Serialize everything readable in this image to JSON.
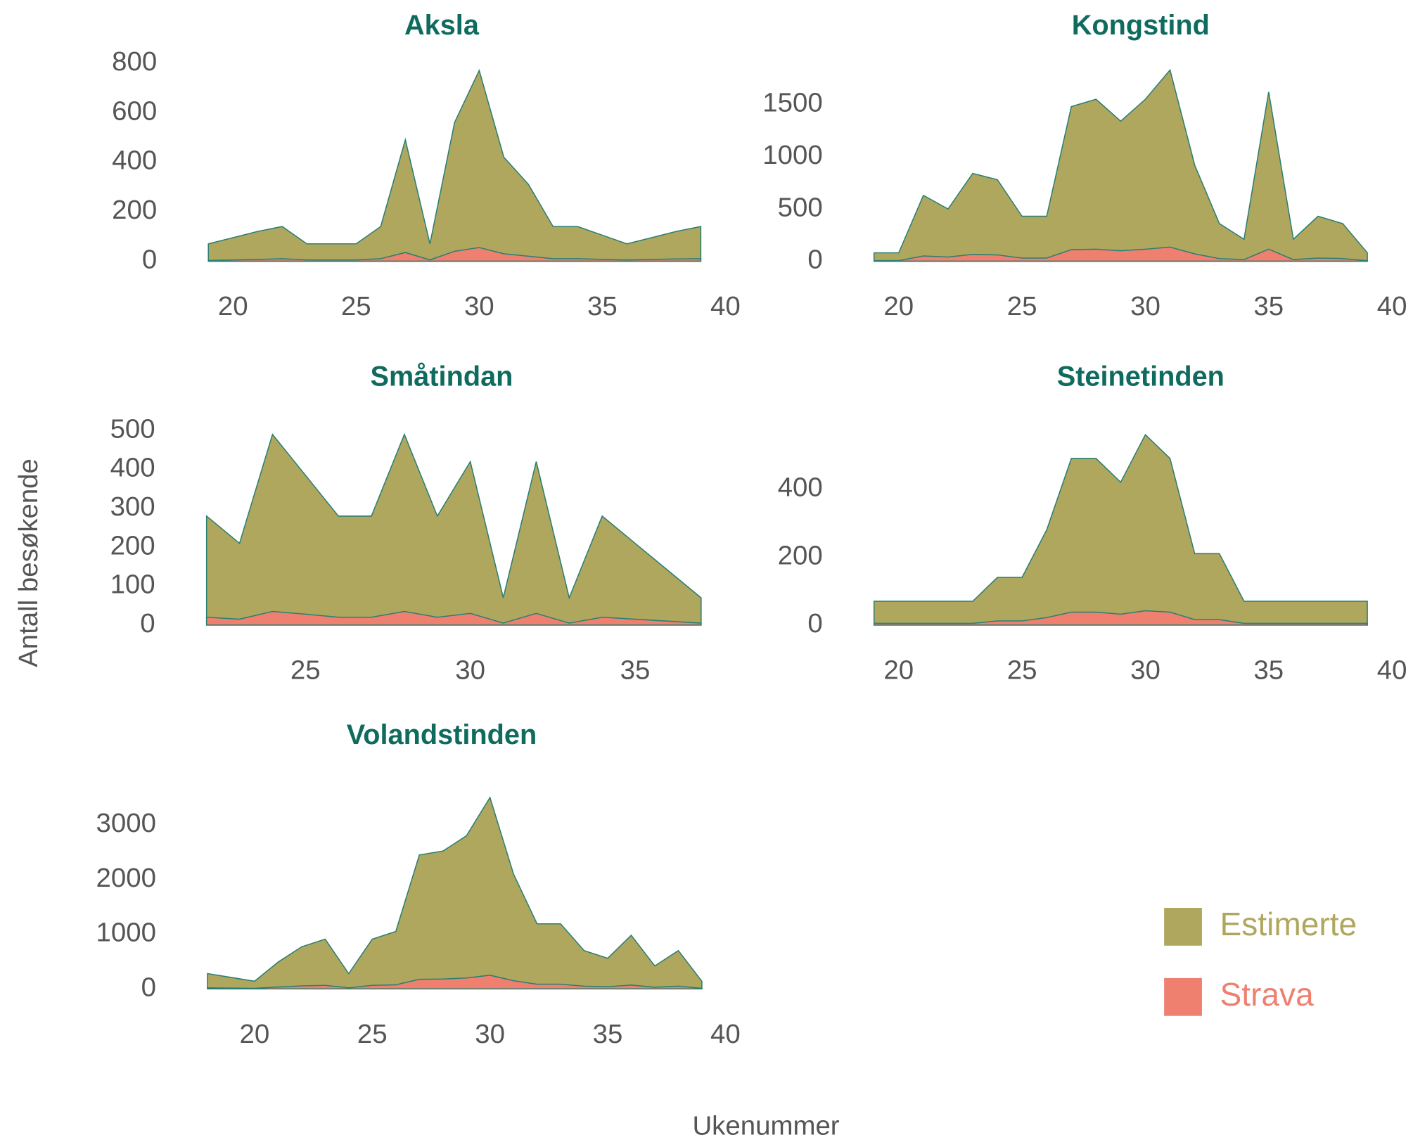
{
  "xlabel": "Ukenummer",
  "ylabel": "Antall besøkende",
  "chart_data": [
    {
      "type": "area",
      "title": "Aksla",
      "x": [
        19,
        20,
        21,
        22,
        23,
        24,
        25,
        26,
        27,
        28,
        29,
        30,
        31,
        32,
        33,
        34,
        35,
        36,
        37,
        38,
        39
      ],
      "series": [
        {
          "name": "Estimerte",
          "color": "#b0a75f",
          "values": [
            70,
            95,
            120,
            140,
            70,
            70,
            70,
            140,
            490,
            70,
            560,
            770,
            420,
            310,
            140,
            140,
            105,
            70,
            95,
            120,
            140
          ]
        },
        {
          "name": "Strava",
          "color": "#ef8070",
          "values": [
            3,
            5,
            7,
            10,
            5,
            5,
            5,
            10,
            35,
            5,
            40,
            55,
            30,
            20,
            10,
            10,
            7,
            5,
            7,
            9,
            10
          ]
        }
      ],
      "xlim": [
        19,
        40
      ],
      "ylim": [
        0,
        800
      ],
      "xticks": [
        20,
        25,
        30,
        35,
        40
      ],
      "yticks": [
        0,
        200,
        400,
        600,
        800
      ]
    },
    {
      "type": "area",
      "title": "Kongstind",
      "x": [
        19,
        20,
        21,
        22,
        23,
        24,
        25,
        26,
        27,
        28,
        29,
        30,
        31,
        32,
        33,
        34,
        35,
        36,
        37,
        38,
        39
      ],
      "series": [
        {
          "name": "Estimerte",
          "color": "#b0a75f",
          "values": [
            80,
            80,
            630,
            500,
            840,
            780,
            430,
            430,
            1480,
            1550,
            1340,
            1550,
            1830,
            920,
            360,
            210,
            1620,
            210,
            430,
            360,
            80
          ]
        },
        {
          "name": "Strava",
          "color": "#ef8070",
          "values": [
            5,
            5,
            50,
            40,
            65,
            60,
            30,
            30,
            110,
            115,
            100,
            115,
            135,
            70,
            25,
            15,
            115,
            15,
            30,
            25,
            5
          ]
        }
      ],
      "xlim": [
        19,
        40
      ],
      "ylim": [
        0,
        1850
      ],
      "xticks": [
        20,
        25,
        30,
        35,
        40
      ],
      "yticks": [
        0,
        500,
        1000,
        1500
      ]
    },
    {
      "type": "area",
      "title": "Småtindan",
      "x": [
        22,
        23,
        24,
        25,
        26,
        27,
        28,
        29,
        30,
        31,
        32,
        33,
        34,
        35,
        36,
        37
      ],
      "series": [
        {
          "name": "Estimerte",
          "color": "#b0a75f",
          "values": [
            280,
            210,
            490,
            385,
            280,
            280,
            490,
            280,
            420,
            70,
            420,
            70,
            280,
            210,
            140,
            70
          ]
        },
        {
          "name": "Strava",
          "color": "#ef8070",
          "values": [
            20,
            15,
            35,
            28,
            20,
            20,
            35,
            20,
            30,
            5,
            30,
            5,
            20,
            15,
            10,
            5
          ]
        }
      ],
      "xlim": [
        22,
        37
      ],
      "ylim": [
        0,
        500
      ],
      "xticks": [
        25,
        30,
        35
      ],
      "yticks": [
        0,
        100,
        200,
        300,
        400,
        500
      ]
    },
    {
      "type": "area",
      "title": "Steinetinden",
      "x": [
        19,
        20,
        21,
        22,
        23,
        24,
        25,
        26,
        27,
        28,
        29,
        30,
        31,
        32,
        33,
        34,
        35,
        36,
        37,
        38,
        39
      ],
      "series": [
        {
          "name": "Estimerte",
          "color": "#b0a75f",
          "values": [
            70,
            70,
            70,
            70,
            70,
            140,
            140,
            280,
            490,
            490,
            420,
            560,
            490,
            210,
            210,
            70,
            70,
            70,
            70,
            70,
            70
          ]
        },
        {
          "name": "Strava",
          "color": "#ef8070",
          "values": [
            5,
            5,
            5,
            5,
            5,
            12,
            12,
            22,
            38,
            38,
            32,
            42,
            38,
            16,
            16,
            5,
            5,
            5,
            5,
            5,
            5
          ]
        }
      ],
      "xlim": [
        19,
        40
      ],
      "ylim": [
        0,
        560
      ],
      "xticks": [
        20,
        25,
        30,
        35,
        40
      ],
      "yticks": [
        0,
        200,
        400
      ]
    },
    {
      "type": "area",
      "title": "Volandstinden",
      "x": [
        18,
        19,
        20,
        21,
        22,
        23,
        24,
        25,
        26,
        27,
        28,
        29,
        30,
        31,
        32,
        33,
        34,
        35,
        36,
        37,
        38,
        39
      ],
      "series": [
        {
          "name": "Estimerte",
          "color": "#b0a75f",
          "values": [
            280,
            210,
            140,
            490,
            770,
            910,
            280,
            910,
            1050,
            2450,
            2520,
            2800,
            3500,
            2100,
            1190,
            1190,
            700,
            560,
            980,
            420,
            700,
            140
          ]
        },
        {
          "name": "Strava",
          "color": "#ef8070",
          "values": [
            20,
            15,
            10,
            35,
            55,
            65,
            20,
            65,
            75,
            175,
            180,
            200,
            250,
            150,
            85,
            85,
            50,
            40,
            70,
            30,
            50,
            10
          ]
        }
      ],
      "xlim": [
        18,
        40
      ],
      "ylim": [
        0,
        3500
      ],
      "xticks": [
        20,
        25,
        30,
        35,
        40
      ],
      "yticks": [
        0,
        1000,
        2000,
        3000
      ]
    }
  ]
}
